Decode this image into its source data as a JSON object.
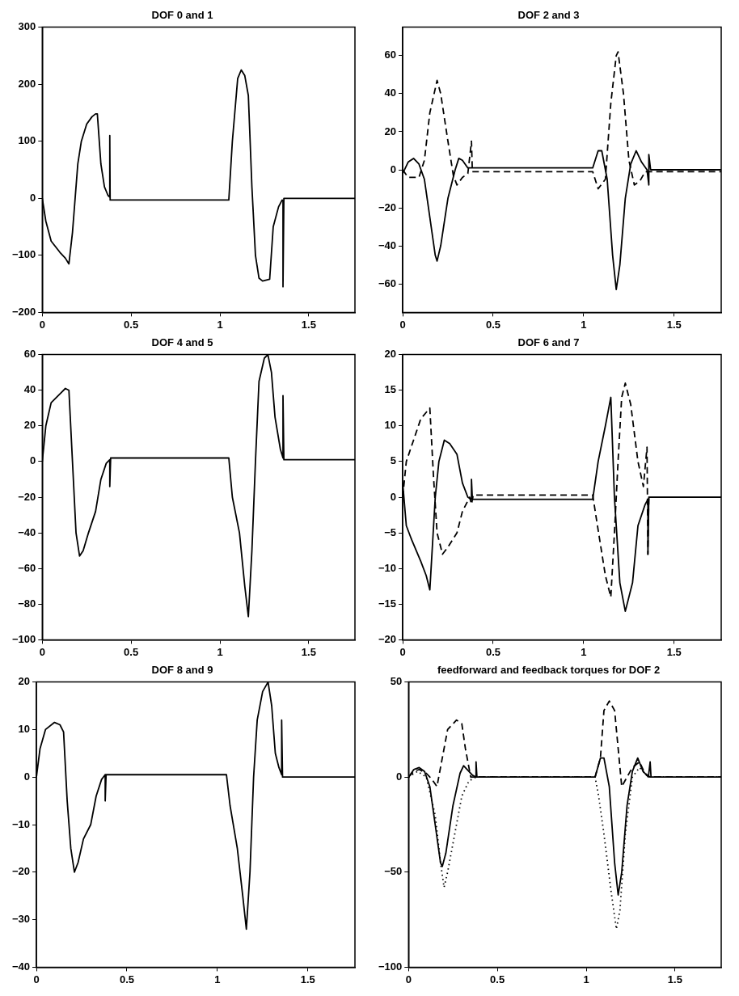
{
  "chart_data": [
    {
      "type": "line",
      "title": "DOF 0 and 1",
      "xlim": [
        0,
        1.76
      ],
      "xticks": [
        0,
        0.5,
        1,
        1.5
      ],
      "ylim": [
        -200,
        300
      ],
      "yticks": [
        -200,
        -100,
        0,
        100,
        200,
        300
      ],
      "grid": false,
      "legend": false,
      "marker": "none",
      "series": [
        {
          "color": "#000000",
          "line_style": "solid",
          "x": [
            0,
            0.02,
            0.05,
            0.1,
            0.13,
            0.15,
            0.17,
            0.2,
            0.22,
            0.25,
            0.28,
            0.3,
            0.31,
            0.33,
            0.35,
            0.37,
            0.38,
            0.38,
            0.382,
            1.05,
            1.07,
            1.1,
            1.12,
            1.14,
            1.16,
            1.18,
            1.2,
            1.22,
            1.24,
            1.28,
            1.3,
            1.33,
            1.35,
            1.355,
            1.355,
            1.36,
            1.76
          ],
          "values": [
            0,
            -40,
            -75,
            -95,
            -105,
            -115,
            -60,
            60,
            100,
            130,
            143,
            148,
            148,
            60,
            20,
            5,
            2,
            110,
            -3,
            -3,
            100,
            210,
            225,
            215,
            180,
            20,
            -100,
            -140,
            -145,
            -142,
            -50,
            -15,
            -3,
            -5,
            -155,
            0,
            0
          ]
        }
      ]
    },
    {
      "type": "line",
      "title": "DOF 2 and 3",
      "xlim": [
        0,
        1.76
      ],
      "xticks": [
        0,
        0.5,
        1,
        1.5
      ],
      "ylim": [
        -75,
        75
      ],
      "yticks": [
        -60,
        -40,
        -20,
        0,
        20,
        40,
        60
      ],
      "grid": false,
      "legend": false,
      "marker": "none",
      "series": [
        {
          "color": "#000000",
          "line_style": "solid",
          "x": [
            0,
            0.03,
            0.06,
            0.09,
            0.12,
            0.15,
            0.18,
            0.19,
            0.21,
            0.25,
            0.29,
            0.31,
            0.33,
            0.36,
            0.38,
            1.05,
            1.08,
            1.1,
            1.13,
            1.16,
            1.18,
            1.2,
            1.23,
            1.26,
            1.29,
            1.32,
            1.35,
            1.36,
            1.36,
            1.37,
            1.76
          ],
          "values": [
            -2,
            4,
            6,
            3,
            -5,
            -25,
            -45,
            -48,
            -40,
            -15,
            0,
            6,
            5,
            1,
            1,
            1,
            10,
            10,
            -5,
            -45,
            -63,
            -50,
            -15,
            3,
            10,
            4,
            0,
            -8,
            8,
            0,
            0
          ]
        },
        {
          "color": "#000000",
          "line_style": "dashed",
          "x": [
            0,
            0.03,
            0.09,
            0.12,
            0.15,
            0.19,
            0.21,
            0.25,
            0.28,
            0.3,
            0.33,
            0.36,
            0.38,
            0.385,
            1.05,
            1.08,
            1.12,
            1.15,
            1.18,
            1.19,
            1.22,
            1.25,
            1.28,
            1.31,
            1.34,
            1.36,
            1.76
          ],
          "values": [
            0,
            -4,
            -4,
            5,
            30,
            47,
            40,
            15,
            -3,
            -8,
            -4,
            -2,
            15,
            -1,
            -1,
            -10,
            -5,
            35,
            60,
            62,
            40,
            5,
            -8,
            -6,
            -1,
            -1,
            -1
          ]
        }
      ]
    },
    {
      "type": "line",
      "title": "DOF 4 and 5",
      "xlim": [
        0,
        1.76
      ],
      "xticks": [
        0,
        0.5,
        1,
        1.5
      ],
      "ylim": [
        -100,
        60
      ],
      "yticks": [
        -100,
        -80,
        -60,
        -40,
        -20,
        0,
        20,
        40,
        60
      ],
      "grid": false,
      "legend": false,
      "marker": "none",
      "series": [
        {
          "color": "#000000",
          "line_style": "solid",
          "x": [
            0,
            0.02,
            0.05,
            0.1,
            0.13,
            0.15,
            0.17,
            0.19,
            0.21,
            0.23,
            0.26,
            0.3,
            0.33,
            0.36,
            0.38,
            0.38,
            0.385,
            1.05,
            1.07,
            1.11,
            1.14,
            1.16,
            1.18,
            1.2,
            1.22,
            1.25,
            1.27,
            1.29,
            1.31,
            1.34,
            1.355,
            1.355,
            1.36,
            1.76
          ],
          "values": [
            0,
            20,
            33,
            38,
            41,
            40,
            0,
            -40,
            -53,
            -50,
            -40,
            -28,
            -10,
            -1,
            1,
            -14,
            2,
            2,
            -20,
            -40,
            -70,
            -87,
            -50,
            0,
            45,
            58,
            60,
            50,
            25,
            7,
            2,
            37,
            1,
            1
          ]
        }
      ]
    },
    {
      "type": "line",
      "title": "DOF 6 and 7",
      "xlim": [
        0,
        1.76
      ],
      "xticks": [
        0,
        0.5,
        1,
        1.5
      ],
      "ylim": [
        -20,
        20
      ],
      "yticks": [
        -20,
        -15,
        -10,
        -5,
        0,
        5,
        10,
        15,
        20
      ],
      "grid": false,
      "legend": false,
      "marker": "none",
      "series": [
        {
          "color": "#000000",
          "line_style": "solid",
          "x": [
            0,
            0.02,
            0.05,
            0.1,
            0.13,
            0.15,
            0.18,
            0.2,
            0.23,
            0.26,
            0.3,
            0.33,
            0.36,
            0.38,
            0.38,
            0.385,
            1.05,
            1.08,
            1.12,
            1.15,
            1.17,
            1.2,
            1.23,
            1.27,
            1.3,
            1.34,
            1.355,
            1.355,
            1.36,
            1.76
          ],
          "values": [
            2,
            -4,
            -6,
            -9,
            -11,
            -13,
            0,
            5,
            8,
            7.5,
            6,
            2,
            0,
            -0.3,
            2.5,
            -0.3,
            -0.3,
            5,
            10,
            14,
            0,
            -12,
            -16,
            -12,
            -4,
            -1,
            -0.3,
            -8,
            0,
            0
          ]
        },
        {
          "color": "#000000",
          "line_style": "dashed",
          "x": [
            0,
            0.02,
            0.06,
            0.1,
            0.15,
            0.17,
            0.19,
            0.22,
            0.25,
            0.3,
            0.33,
            0.37,
            0.38,
            0.39,
            1.05,
            1.07,
            1.12,
            1.15,
            1.17,
            1.19,
            1.21,
            1.23,
            1.26,
            1.3,
            1.33,
            1.35,
            1.355,
            1.36,
            1.76
          ],
          "values": [
            0,
            5,
            8,
            11,
            12.5,
            3,
            -5,
            -8,
            -7,
            -5,
            -2,
            0,
            -1,
            0.3,
            0.3,
            -3,
            -11,
            -14,
            -5,
            5,
            14,
            16,
            13,
            5,
            1.5,
            7,
            -8,
            0,
            0
          ]
        }
      ]
    },
    {
      "type": "line",
      "title": "DOF 8 and 9",
      "xlim": [
        0,
        1.76
      ],
      "xticks": [
        0,
        0.5,
        1,
        1.5
      ],
      "ylim": [
        -40,
        20
      ],
      "yticks": [
        -40,
        -30,
        -20,
        -10,
        0,
        10,
        20
      ],
      "grid": false,
      "legend": false,
      "marker": "none",
      "series": [
        {
          "color": "#000000",
          "line_style": "solid",
          "x": [
            0,
            0.02,
            0.05,
            0.1,
            0.13,
            0.15,
            0.17,
            0.19,
            0.21,
            0.23,
            0.26,
            0.3,
            0.33,
            0.36,
            0.38,
            0.38,
            0.385,
            1.05,
            1.07,
            1.11,
            1.14,
            1.16,
            1.18,
            1.2,
            1.22,
            1.25,
            1.28,
            1.3,
            1.32,
            1.34,
            1.355,
            1.355,
            1.36,
            1.76
          ],
          "values": [
            0,
            6,
            10,
            11.5,
            11,
            9.5,
            -5,
            -15,
            -20,
            -18,
            -13,
            -10,
            -4,
            -0.5,
            0.5,
            -5,
            0.5,
            0.5,
            -6,
            -15,
            -25,
            -32,
            -20,
            0,
            12,
            18,
            20,
            15,
            5,
            2,
            0.5,
            12,
            0,
            0
          ]
        }
      ]
    },
    {
      "type": "line",
      "title": "feedforward and feedback torques for DOF 2",
      "xlim": [
        0,
        1.76
      ],
      "xticks": [
        0,
        0.5,
        1,
        1.5
      ],
      "ylim": [
        -100,
        50
      ],
      "yticks": [
        -100,
        -50,
        0,
        50
      ],
      "grid": false,
      "legend": false,
      "marker": "none",
      "series": [
        {
          "color": "#000000",
          "line_style": "solid",
          "x": [
            0,
            0.03,
            0.06,
            0.09,
            0.12,
            0.15,
            0.18,
            0.19,
            0.21,
            0.25,
            0.29,
            0.31,
            0.33,
            0.36,
            0.38,
            0.38,
            0.385,
            1.05,
            1.08,
            1.1,
            1.13,
            1.16,
            1.18,
            1.2,
            1.23,
            1.26,
            1.29,
            1.32,
            1.35,
            1.36,
            1.365,
            1.76
          ],
          "values": [
            0,
            4,
            5,
            3,
            -5,
            -25,
            -45,
            -47,
            -40,
            -15,
            2,
            6,
            4,
            1,
            0,
            8,
            0,
            0,
            10,
            10,
            -5,
            -45,
            -62,
            -50,
            -15,
            3,
            10,
            3,
            0,
            8,
            0,
            0
          ]
        },
        {
          "color": "#000000",
          "line_style": "dashed",
          "x": [
            0,
            0.03,
            0.06,
            0.1,
            0.13,
            0.16,
            0.19,
            0.22,
            0.27,
            0.3,
            0.32,
            0.35,
            0.38,
            1.05,
            1.08,
            1.1,
            1.13,
            1.16,
            1.18,
            1.2,
            1.23,
            1.26,
            1.3,
            1.33,
            1.36,
            1.76
          ],
          "values": [
            0,
            3,
            4,
            2,
            -1,
            -5,
            10,
            25,
            30,
            28,
            15,
            0,
            0,
            0,
            10,
            35,
            40,
            35,
            15,
            -5,
            0,
            5,
            8,
            2,
            0,
            0
          ]
        },
        {
          "color": "#000000",
          "line_style": "dotted",
          "x": [
            0,
            0.05,
            0.1,
            0.15,
            0.18,
            0.2,
            0.22,
            0.26,
            0.3,
            0.34,
            0.38,
            1.05,
            1.07,
            1.1,
            1.14,
            1.17,
            1.19,
            1.22,
            1.26,
            1.3,
            1.35,
            1.76
          ],
          "values": [
            0,
            3,
            0,
            -20,
            -45,
            -58,
            -50,
            -30,
            -10,
            -2,
            0,
            0,
            -10,
            -30,
            -60,
            -80,
            -70,
            -30,
            0,
            5,
            0,
            0
          ]
        }
      ]
    }
  ]
}
